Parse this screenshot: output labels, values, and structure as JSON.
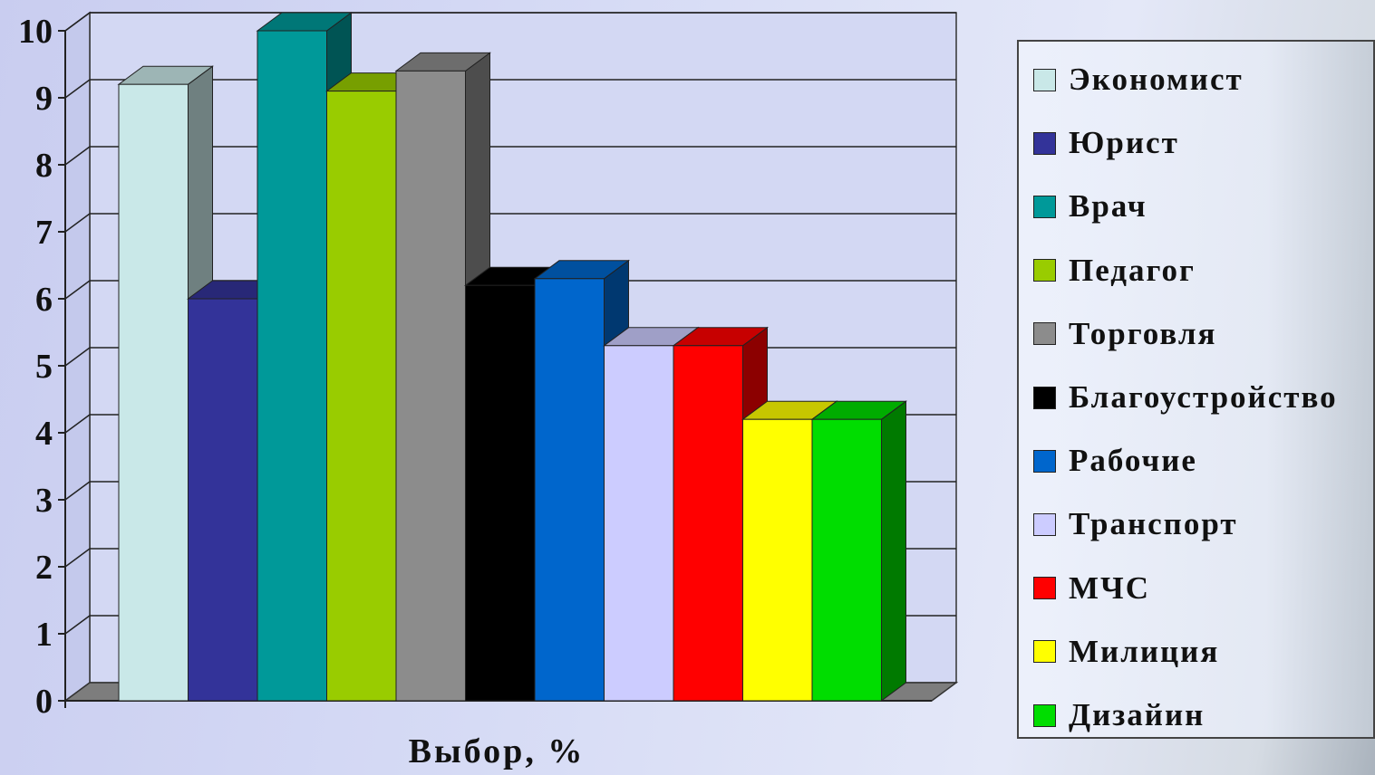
{
  "chart_data": {
    "type": "bar",
    "xlabel": "Выбор, %",
    "ylabel": "",
    "ylim": [
      0,
      10
    ],
    "yticks": [
      "0",
      "1",
      "2",
      "3",
      "4",
      "5",
      "6",
      "7",
      "8",
      "9",
      "10"
    ],
    "grid": true,
    "legend_position": "right",
    "series": [
      {
        "name": "Экономист",
        "value": 9.2,
        "color": "#c9e8e8"
      },
      {
        "name": "Юрист",
        "value": 6.0,
        "color": "#333399"
      },
      {
        "name": "Врач",
        "value": 10.0,
        "color": "#009999"
      },
      {
        "name": "Педагог",
        "value": 9.1,
        "color": "#99cc00"
      },
      {
        "name": "Торговля",
        "value": 9.4,
        "color": "#8c8c8c"
      },
      {
        "name": "Благоустройство",
        "value": 6.2,
        "color": "#000000"
      },
      {
        "name": "Рабочие",
        "value": 6.3,
        "color": "#0066cc"
      },
      {
        "name": "Транспорт",
        "value": 5.3,
        "color": "#ccccff"
      },
      {
        "name": "МЧС",
        "value": 5.3,
        "color": "#ff0000"
      },
      {
        "name": "Милиция",
        "value": 4.2,
        "color": "#ffff00"
      },
      {
        "name": "Дизайин",
        "value": 4.2,
        "color": "#00dd00"
      }
    ]
  }
}
